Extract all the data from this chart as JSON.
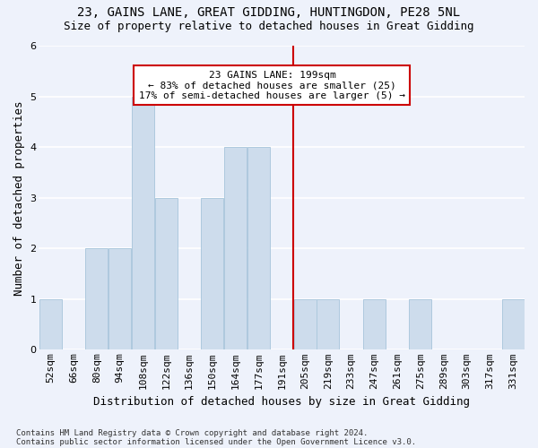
{
  "title1": "23, GAINS LANE, GREAT GIDDING, HUNTINGDON, PE28 5NL",
  "title2": "Size of property relative to detached houses in Great Gidding",
  "xlabel": "Distribution of detached houses by size in Great Gidding",
  "ylabel": "Number of detached properties",
  "categories": [
    "52sqm",
    "66sqm",
    "80sqm",
    "94sqm",
    "108sqm",
    "122sqm",
    "136sqm",
    "150sqm",
    "164sqm",
    "177sqm",
    "191sqm",
    "205sqm",
    "219sqm",
    "233sqm",
    "247sqm",
    "261sqm",
    "275sqm",
    "289sqm",
    "303sqm",
    "317sqm",
    "331sqm"
  ],
  "values": [
    1,
    0,
    2,
    2,
    5,
    3,
    0,
    3,
    4,
    4,
    0,
    1,
    1,
    0,
    1,
    0,
    1,
    0,
    0,
    0,
    1
  ],
  "bar_color": "#cddcec",
  "bar_edge_color": "#aec9de",
  "background_color": "#eef2fb",
  "grid_color": "#ffffff",
  "vline_x_index": 10.5,
  "vline_color": "#cc0000",
  "annotation_text": "23 GAINS LANE: 199sqm\n← 83% of detached houses are smaller (25)\n17% of semi-detached houses are larger (5) →",
  "annotation_box_color": "#cc0000",
  "footnote1": "Contains HM Land Registry data © Crown copyright and database right 2024.",
  "footnote2": "Contains public sector information licensed under the Open Government Licence v3.0.",
  "ylim": [
    0,
    6
  ],
  "yticks": [
    0,
    1,
    2,
    3,
    4,
    5,
    6
  ],
  "title1_fontsize": 10,
  "title2_fontsize": 9,
  "xlabel_fontsize": 9,
  "ylabel_fontsize": 9,
  "tick_fontsize": 8,
  "annot_fontsize": 8,
  "footnote_fontsize": 6.5
}
